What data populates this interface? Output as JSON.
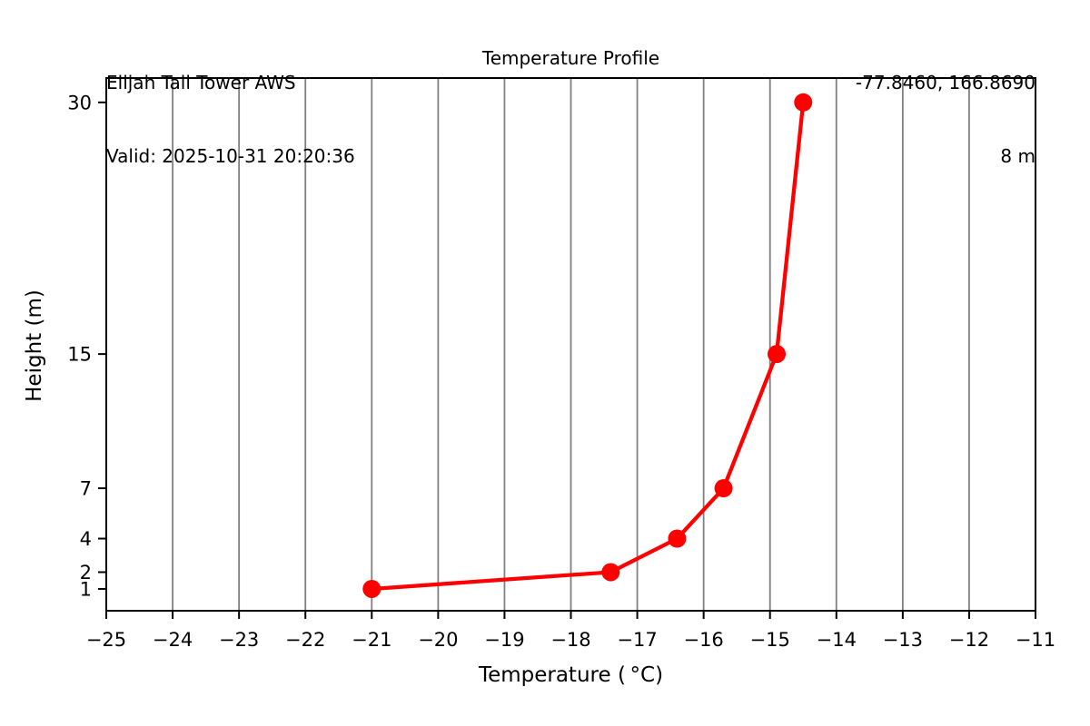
{
  "header": {
    "station": "Elijah Tall Tower AWS",
    "valid": "Valid: 2025-10-31 20:20:36",
    "title": "Temperature Profile",
    "coordinates": "-77.8460, 166.8690",
    "elevation": "8 m"
  },
  "chart_data": {
    "type": "line",
    "title": "Temperature Profile",
    "xlabel": "Temperature ( °C)",
    "ylabel": "Height (m)",
    "xlim": [
      -25,
      -11
    ],
    "ylim": [
      -0.3,
      31.45
    ],
    "xticks": [
      -25,
      -24,
      -23,
      -22,
      -21,
      -20,
      -19,
      -18,
      -17,
      -16,
      -15,
      -14,
      -13,
      -12,
      -11
    ],
    "yticks": [
      1,
      2,
      4,
      7,
      15,
      30
    ],
    "grid": "vertical-only",
    "grid_color": "#808080",
    "axis_color": "#000000",
    "background_color": "#ffffff",
    "legend": "none",
    "series": [
      {
        "name": "temperature-profile",
        "color": "#ff0000",
        "marker": "circle",
        "x": [
          -21.0,
          -17.4,
          -16.4,
          -15.7,
          -14.9,
          -14.5
        ],
        "y": [
          1,
          2,
          4,
          7,
          15,
          30
        ]
      }
    ]
  }
}
